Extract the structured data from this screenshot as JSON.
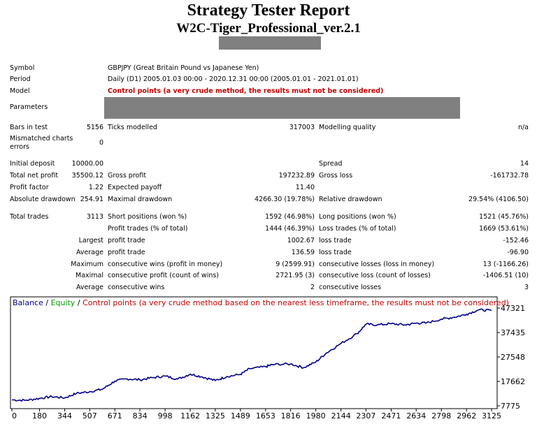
{
  "header": {
    "title": "Strategy Tester Report",
    "subtitle": "W2C-Tiger_Professional_ver.2.1"
  },
  "info": {
    "symbol_label": "Symbol",
    "symbol_value": "GBPJPY (Great Britain Pound vs Japanese Yen)",
    "period_label": "Period",
    "period_value": "Daily (D1) 2005.01.03 00:00 - 2020.12.31 00:00 (2005.01.01 - 2021.01.01)",
    "model_label": "Model",
    "model_value": "Control points (a very crude method, the results must not be considered)",
    "parameters_label": "Parameters"
  },
  "stats": {
    "bars_label": "Bars in test",
    "bars_value": "5156",
    "ticks_label": "Ticks modelled",
    "ticks_value": "317003",
    "quality_label": "Modelling quality",
    "quality_value": "n/a",
    "mismatch_label1": "Mismatched charts",
    "mismatch_label2": "errors",
    "mismatch_value": "0",
    "deposit_label": "Initial deposit",
    "deposit_value": "10000.00",
    "spread_label": "Spread",
    "spread_value": "14",
    "netprofit_label": "Total net profit",
    "netprofit_value": "35500.12",
    "grossprofit_label": "Gross profit",
    "grossprofit_value": "197232.89",
    "grossloss_label": "Gross loss",
    "grossloss_value": "-161732.78",
    "pf_label": "Profit factor",
    "pf_value": "1.22",
    "payoff_label": "Expected payoff",
    "payoff_value": "11.40",
    "absdd_label": "Absolute drawdown",
    "absdd_value": "254.91",
    "maxdd_label": "Maximal drawdown",
    "maxdd_value": "4266.30 (19.78%)",
    "reldd_label": "Relative drawdown",
    "reldd_value": "29.54% (4106.50)",
    "trades_label": "Total trades",
    "trades_value": "3113",
    "short_label": "Short positions (won %)",
    "short_value": "1592 (46.98%)",
    "long_label": "Long positions (won %)",
    "long_value": "1521 (45.76%)",
    "profittrades_label": "Profit trades (% of total)",
    "profittrades_value": "1444 (46.39%)",
    "losstrades_label": "Loss trades (% of total)",
    "losstrades_value": "1669 (53.61%)",
    "largest_label": "Largest",
    "largest_profit_label": "profit trade",
    "largest_profit_value": "1002.67",
    "largest_loss_label": "loss trade",
    "largest_loss_value": "-152.46",
    "average_label": "Average",
    "average_profit_label": "profit trade",
    "average_profit_value": "136.59",
    "average_loss_label": "loss trade",
    "average_loss_value": "-96.90",
    "maximum_label": "Maximum",
    "max_wins_label": "consecutive wins (profit in money)",
    "max_wins_value": "9 (2599.91)",
    "max_losses_label": "consecutive losses (loss in money)",
    "max_losses_value": "13 (-1166.26)",
    "maximal_label": "Maximal",
    "maximal_profit_label": "consecutive profit (count of wins)",
    "maximal_profit_value": "2721.95 (3)",
    "maximal_loss_label": "consecutive loss (count of losses)",
    "maximal_loss_value": "-1406.51 (10)",
    "avgcons_label": "Average",
    "avgcons_wins_label": "consecutive wins",
    "avgcons_wins_value": "2",
    "avgcons_losses_label": "consecutive losses",
    "avgcons_losses_value": "3"
  },
  "colors": {
    "balance": "#00008b",
    "equity": "#00a000",
    "note": "#c00000",
    "redact": "#808080"
  },
  "chart_data": {
    "type": "line",
    "legend": {
      "balance": "Balance",
      "sep1": " / ",
      "equity": "Equity",
      "sep2": " / ",
      "note": "Control points (a very crude method based on the nearest less timeframe, the results must not be considered)"
    },
    "x_ticks": [
      "0",
      "180",
      "344",
      "507",
      "671",
      "834",
      "998",
      "1162",
      "1325",
      "1489",
      "1653",
      "1816",
      "1980",
      "2144",
      "2307",
      "2471",
      "2634",
      "2798",
      "2962",
      "3125"
    ],
    "y_ticks": [
      "47321",
      "37435",
      "27548",
      "17662",
      "7775"
    ],
    "xlim": [
      0,
      3125
    ],
    "ylim": [
      7775,
      47321
    ],
    "series": [
      {
        "name": "Balance",
        "points": [
          [
            0,
            10200
          ],
          [
            90,
            10000
          ],
          [
            180,
            10800
          ],
          [
            260,
            11500
          ],
          [
            344,
            11000
          ],
          [
            420,
            12800
          ],
          [
            507,
            13500
          ],
          [
            590,
            14500
          ],
          [
            671,
            17800
          ],
          [
            750,
            18700
          ],
          [
            834,
            18300
          ],
          [
            920,
            19200
          ],
          [
            998,
            19800
          ],
          [
            1080,
            18600
          ],
          [
            1162,
            20600
          ],
          [
            1240,
            19500
          ],
          [
            1325,
            18000
          ],
          [
            1400,
            19600
          ],
          [
            1489,
            20500
          ],
          [
            1550,
            22800
          ],
          [
            1653,
            23600
          ],
          [
            1700,
            24500
          ],
          [
            1816,
            24700
          ],
          [
            1900,
            23200
          ],
          [
            1980,
            25500
          ],
          [
            2050,
            29200
          ],
          [
            2144,
            33000
          ],
          [
            2250,
            37000
          ],
          [
            2307,
            40800
          ],
          [
            2380,
            40500
          ],
          [
            2471,
            41000
          ],
          [
            2560,
            40500
          ],
          [
            2634,
            41200
          ],
          [
            2700,
            41300
          ],
          [
            2798,
            42800
          ],
          [
            2880,
            43600
          ],
          [
            2962,
            44800
          ],
          [
            3040,
            46600
          ],
          [
            3125,
            46300
          ]
        ]
      }
    ]
  }
}
